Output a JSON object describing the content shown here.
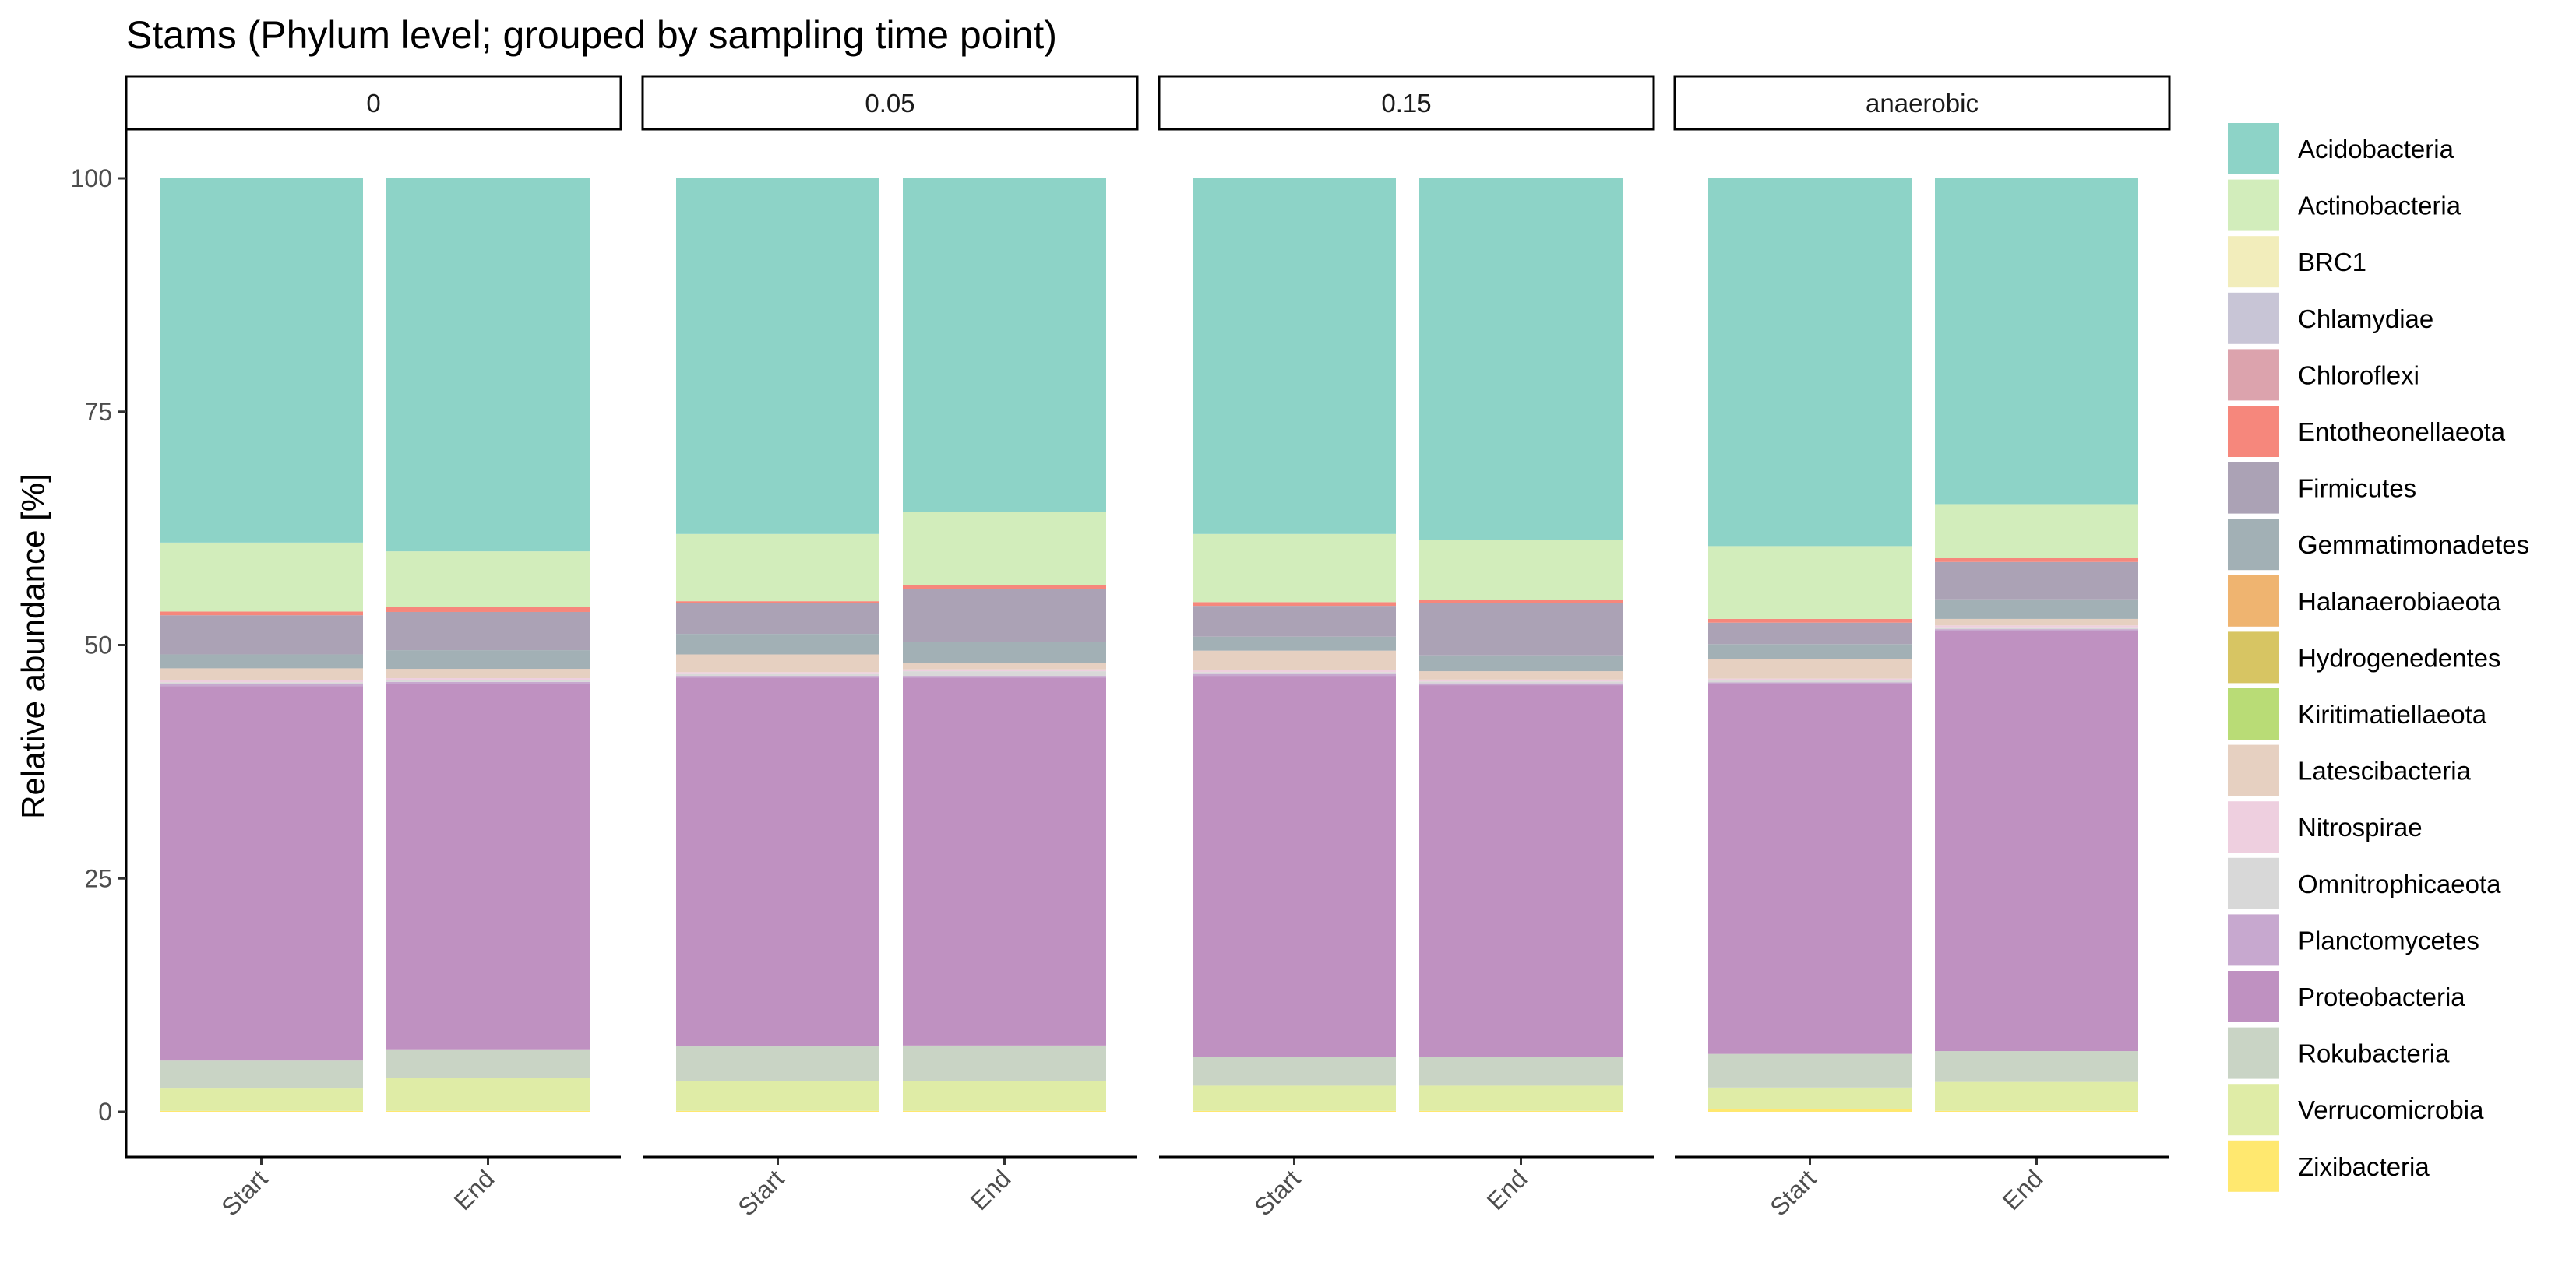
{
  "chart_data": {
    "type": "bar",
    "stacked": true,
    "title": "Stams (Phylum level; grouped by sampling time point)",
    "xlabel": "",
    "ylabel": "Relative abundance [%]",
    "ylim": [
      0,
      100
    ],
    "yticks": [
      0,
      25,
      50,
      75,
      100
    ],
    "grid": false,
    "legend_position": "right",
    "categories": [
      "Start",
      "End"
    ],
    "facets": [
      "0",
      "0.05",
      "0.15",
      "anaerobic"
    ],
    "phyla": [
      {
        "name": "Acidobacteria",
        "color": "#8DD3C7"
      },
      {
        "name": "Actinobacteria",
        "color": "#D2EDBB"
      },
      {
        "name": "BRC1",
        "color": "#F2EDBB"
      },
      {
        "name": "Chlamydiae",
        "color": "#C8C5D6"
      },
      {
        "name": "Chloroflexi",
        "color": "#DCA3AD"
      },
      {
        "name": "Entotheonellaeota",
        "color": "#F6877C"
      },
      {
        "name": "Firmicutes",
        "color": "#ABA2B5"
      },
      {
        "name": "Gemmatimonadetes",
        "color": "#A2B0B5"
      },
      {
        "name": "Halanaerobiaeota",
        "color": "#EFB470"
      },
      {
        "name": "Hydrogenedentes",
        "color": "#D7C563"
      },
      {
        "name": "Kiritimatiellaeota",
        "color": "#B9DC76"
      },
      {
        "name": "Latescibacteria",
        "color": "#E6D0C1"
      },
      {
        "name": "Nitrospirae",
        "color": "#EECFDF"
      },
      {
        "name": "Omnitrophicaeota",
        "color": "#D8D8D8"
      },
      {
        "name": "Planctomycetes",
        "color": "#C7A8CF"
      },
      {
        "name": "Proteobacteria",
        "color": "#BF91C1"
      },
      {
        "name": "Rokubacteria",
        "color": "#C9D4C5"
      },
      {
        "name": "Verrucomicrobia",
        "color": "#DFECA6"
      },
      {
        "name": "Zixibacteria",
        "color": "#FFE86F"
      }
    ],
    "panels": [
      {
        "facet": "0",
        "bars": [
          {
            "category": "Start",
            "values": {
              "Zixibacteria": 0.1,
              "Verrucomicrobia": 2.4,
              "Rokubacteria": 3.0,
              "Planctomycetes": 0.2,
              "Proteobacteria": 40.2,
              "Omnitrophicaeota": 0.2,
              "Nitrospirae": 0.2,
              "Latescibacteria": 1.3,
              "Kiritimatiellaeota": 0.0,
              "Hydrogenedentes": 0.0,
              "Halanaerobiaeota": 0.0,
              "Gemmatimonadetes": 1.5,
              "Firmicutes": 4.2,
              "Entotheonellaeota": 0.4,
              "Chloroflexi": 0.0,
              "Chlamydiae": 0.0,
              "BRC1": 0.0,
              "Actinobacteria": 7.4,
              "Acidobacteria": 39.1
            }
          },
          {
            "category": "End",
            "values": {
              "Zixibacteria": 0.1,
              "Verrucomicrobia": 3.5,
              "Rokubacteria": 3.1,
              "Planctomycetes": 0.2,
              "Proteobacteria": 39.2,
              "Omnitrophicaeota": 0.2,
              "Nitrospirae": 0.2,
              "Latescibacteria": 1.0,
              "Kiritimatiellaeota": 0.0,
              "Hydrogenedentes": 0.0,
              "Halanaerobiaeota": 0.0,
              "Gemmatimonadetes": 2.0,
              "Firmicutes": 4.1,
              "Entotheonellaeota": 0.5,
              "Chloroflexi": 0.0,
              "Chlamydiae": 0.0,
              "BRC1": 0.0,
              "Actinobacteria": 6.0,
              "Acidobacteria": 40.0
            }
          }
        ]
      },
      {
        "facet": "0.05",
        "bars": [
          {
            "category": "Start",
            "values": {
              "Zixibacteria": 0.1,
              "Verrucomicrobia": 3.2,
              "Rokubacteria": 3.7,
              "Planctomycetes": 0.2,
              "Proteobacteria": 39.5,
              "Omnitrophicaeota": 0.2,
              "Nitrospirae": 0.2,
              "Latescibacteria": 1.9,
              "Kiritimatiellaeota": 0.0,
              "Hydrogenedentes": 0.0,
              "Halanaerobiaeota": 0.0,
              "Gemmatimonadetes": 2.2,
              "Firmicutes": 3.3,
              "Entotheonellaeota": 0.2,
              "Chloroflexi": 0.0,
              "Chlamydiae": 0.0,
              "BRC1": 0.0,
              "Actinobacteria": 7.2,
              "Acidobacteria": 38.1
            }
          },
          {
            "category": "End",
            "values": {
              "Zixibacteria": 0.1,
              "Verrucomicrobia": 3.2,
              "Rokubacteria": 3.8,
              "Planctomycetes": 0.2,
              "Proteobacteria": 39.4,
              "Omnitrophicaeota": 0.5,
              "Nitrospirae": 0.2,
              "Latescibacteria": 0.7,
              "Kiritimatiellaeota": 0.0,
              "Hydrogenedentes": 0.0,
              "Halanaerobiaeota": 0.0,
              "Gemmatimonadetes": 2.2,
              "Firmicutes": 5.7,
              "Entotheonellaeota": 0.4,
              "Chloroflexi": 0.0,
              "Chlamydiae": 0.0,
              "BRC1": 0.0,
              "Actinobacteria": 7.9,
              "Acidobacteria": 35.7
            }
          }
        ]
      },
      {
        "facet": "0.15",
        "bars": [
          {
            "category": "Start",
            "values": {
              "Zixibacteria": 0.1,
              "Verrucomicrobia": 2.7,
              "Rokubacteria": 3.1,
              "Planctomycetes": 0.2,
              "Proteobacteria": 40.8,
              "Omnitrophicaeota": 0.2,
              "Nitrospirae": 0.2,
              "Latescibacteria": 2.1,
              "Kiritimatiellaeota": 0.0,
              "Hydrogenedentes": 0.0,
              "Halanaerobiaeota": 0.0,
              "Gemmatimonadetes": 1.5,
              "Firmicutes": 3.3,
              "Entotheonellaeota": 0.4,
              "Chloroflexi": 0.0,
              "Chlamydiae": 0.0,
              "BRC1": 0.0,
              "Actinobacteria": 7.3,
              "Acidobacteria": 38.1
            }
          },
          {
            "category": "End",
            "values": {
              "Zixibacteria": 0.1,
              "Verrucomicrobia": 2.7,
              "Rokubacteria": 3.1,
              "Planctomycetes": 0.2,
              "Proteobacteria": 39.8,
              "Omnitrophicaeota": 0.2,
              "Nitrospirae": 0.2,
              "Latescibacteria": 0.9,
              "Kiritimatiellaeota": 0.0,
              "Hydrogenedentes": 0.0,
              "Halanaerobiaeota": 0.0,
              "Gemmatimonadetes": 1.7,
              "Firmicutes": 5.6,
              "Entotheonellaeota": 0.3,
              "Chloroflexi": 0.0,
              "Chlamydiae": 0.0,
              "BRC1": 0.0,
              "Actinobacteria": 6.5,
              "Acidobacteria": 38.7
            }
          }
        ]
      },
      {
        "facet": "anaerobic",
        "bars": [
          {
            "category": "Start",
            "values": {
              "Zixibacteria": 0.3,
              "Verrucomicrobia": 2.3,
              "Rokubacteria": 3.6,
              "Planctomycetes": 0.2,
              "Proteobacteria": 39.6,
              "Omnitrophicaeota": 0.2,
              "Nitrospirae": 0.2,
              "Latescibacteria": 2.1,
              "Kiritimatiellaeota": 0.0,
              "Hydrogenedentes": 0.0,
              "Halanaerobiaeota": 0.0,
              "Gemmatimonadetes": 1.6,
              "Firmicutes": 2.3,
              "Entotheonellaeota": 0.4,
              "Chloroflexi": 0.0,
              "Chlamydiae": 0.0,
              "BRC1": 0.0,
              "Actinobacteria": 7.8,
              "Acidobacteria": 39.4
            }
          },
          {
            "category": "End",
            "values": {
              "Zixibacteria": 0.1,
              "Verrucomicrobia": 3.1,
              "Rokubacteria": 3.3,
              "Planctomycetes": 0.2,
              "Proteobacteria": 45.0,
              "Omnitrophicaeota": 0.2,
              "Nitrospirae": 0.2,
              "Latescibacteria": 0.7,
              "Kiritimatiellaeota": 0.0,
              "Hydrogenedentes": 0.0,
              "Halanaerobiaeota": 0.0,
              "Gemmatimonadetes": 2.1,
              "Firmicutes": 4.0,
              "Entotheonellaeota": 0.4,
              "Chloroflexi": 0.0,
              "Chlamydiae": 0.0,
              "BRC1": 0.0,
              "Actinobacteria": 5.8,
              "Acidobacteria": 34.9
            }
          }
        ]
      }
    ]
  }
}
